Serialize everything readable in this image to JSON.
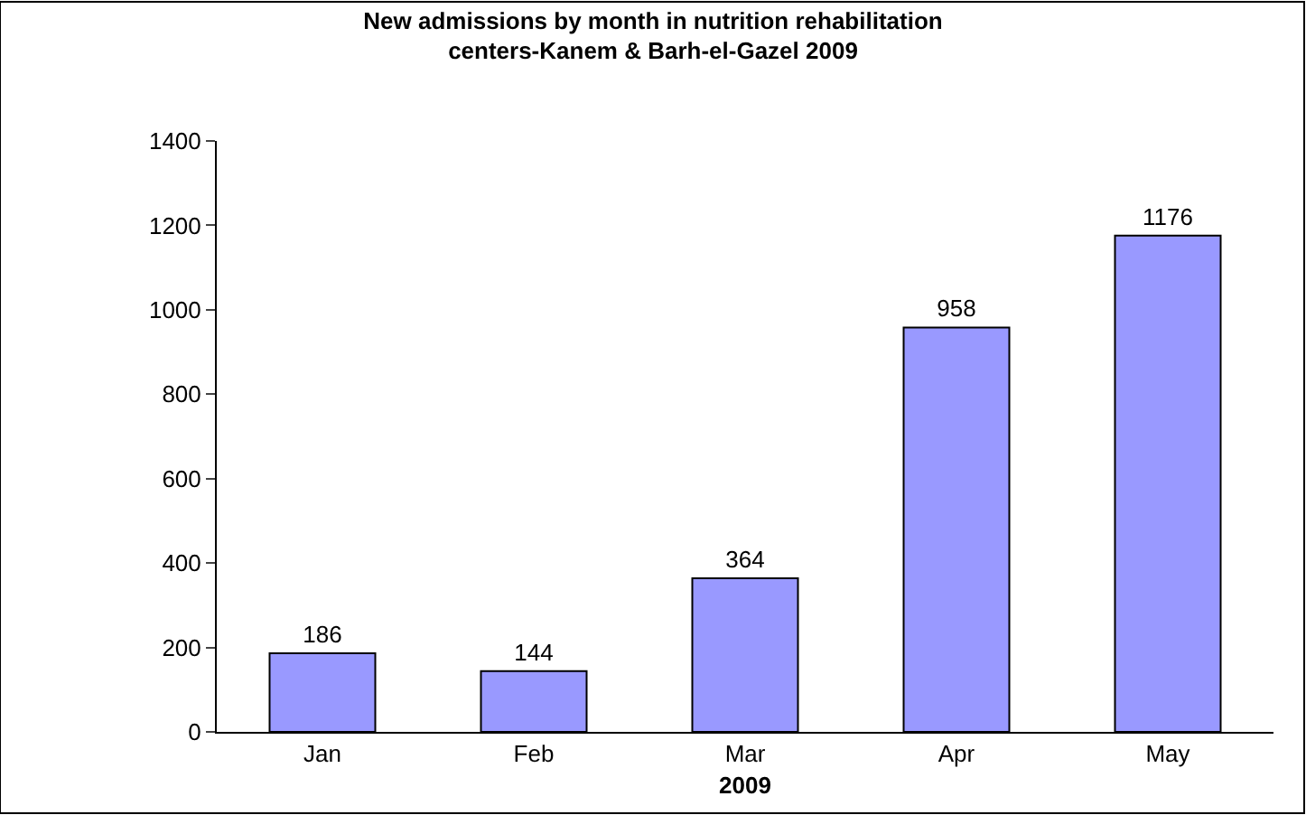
{
  "chart_data": {
    "type": "bar",
    "title": "New admissions by month in nutrition rehabilitation\ncenters-Kanem & Barh-el-Gazel 2009",
    "xlabel": "2009",
    "categories": [
      "Jan",
      "Feb",
      "Mar",
      "Apr",
      "May"
    ],
    "values": [
      186,
      144,
      364,
      958,
      1176
    ],
    "color": "#9999ff",
    "ylim": [
      0,
      1400
    ],
    "yticks": [
      0,
      200,
      400,
      600,
      800,
      1000,
      1200,
      1400
    ],
    "data_labels": true
  }
}
